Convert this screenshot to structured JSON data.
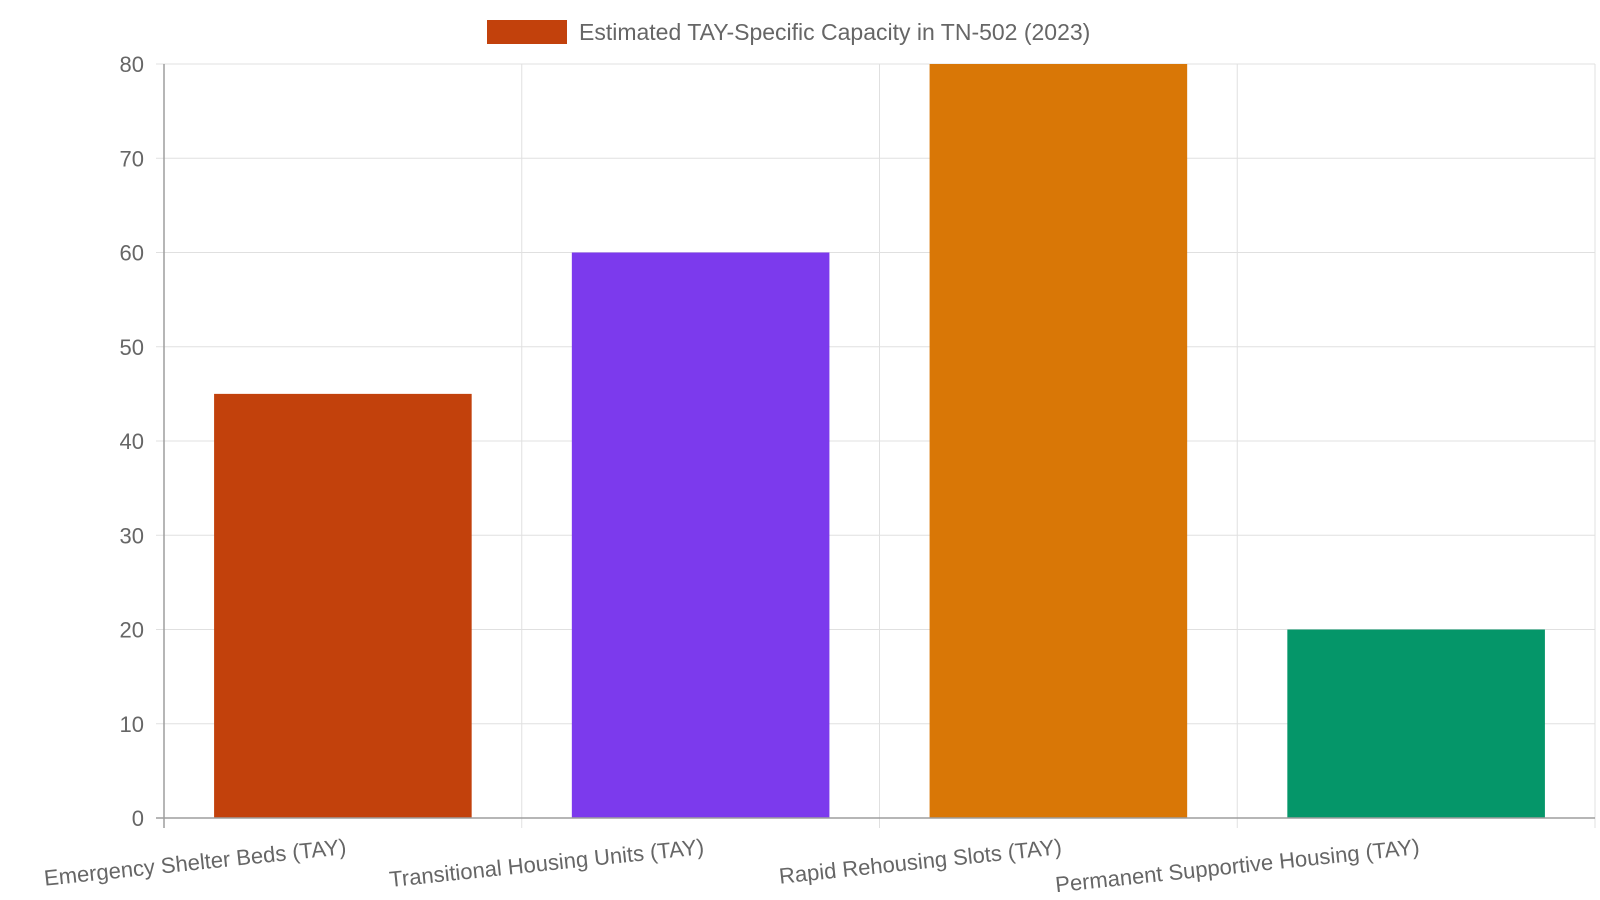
{
  "chart_data": {
    "type": "bar",
    "categories": [
      "Emergency Shelter Beds (TAY)",
      "Transitional Housing Units (TAY)",
      "Rapid Rehousing Slots (TAY)",
      "Permanent Supportive Housing (TAY)"
    ],
    "series": [
      {
        "name": "Estimated TAY-Specific Capacity in TN-502 (2023)",
        "values": [
          45,
          60,
          80,
          20
        ],
        "colors": [
          "#c2410c",
          "#7c3aed",
          "#d97706",
          "#059669"
        ]
      }
    ],
    "legend_color": "#c2410c",
    "legend_position": "top",
    "ylim": [
      0,
      80
    ],
    "yticks": [
      0,
      10,
      20,
      30,
      40,
      50,
      60,
      70,
      80
    ],
    "grid": true
  }
}
